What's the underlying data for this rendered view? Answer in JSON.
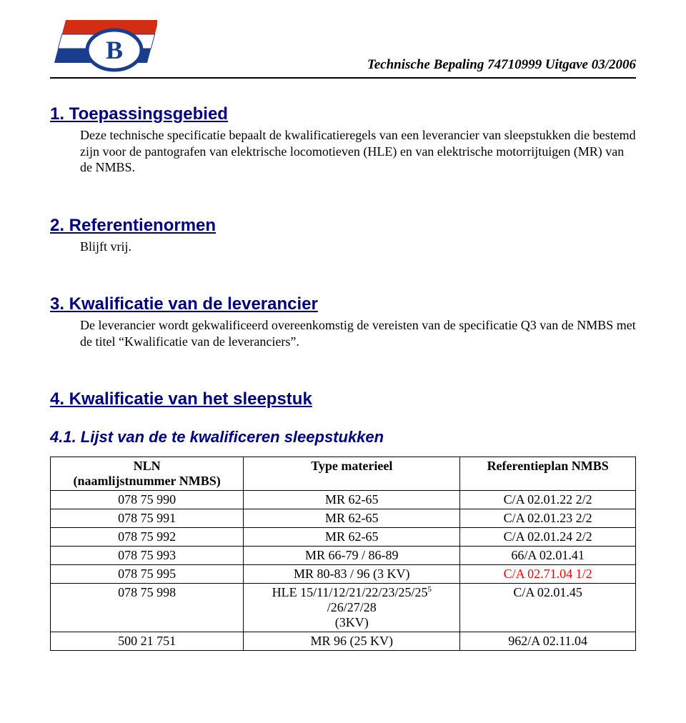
{
  "header": {
    "title": "Technische Bepaling 74710999 Uitgave 03/2006"
  },
  "sections": {
    "s1": {
      "heading": "1. Toepassingsgebied",
      "body": "Deze technische specificatie bepaalt de kwalificatieregels van een leverancier van sleepstukken die bestemd zijn voor de pantografen van elektrische locomotieven (HLE) en van elektrische motorrijtuigen (MR) van de NMBS."
    },
    "s2": {
      "heading": "2. Referentienormen",
      "body": "Blijft vrij."
    },
    "s3": {
      "heading": "3. Kwalificatie van de leverancier",
      "body": "De leverancier wordt gekwalificeerd overeenkomstig de vereisten van de specificatie Q3 van de NMBS met de titel “Kwalificatie van de leveranciers”."
    },
    "s4": {
      "heading": "4. Kwalificatie van het sleepstuk"
    },
    "s41": {
      "heading": "4.1. Lijst van de te kwalificeren sleepstukken"
    }
  },
  "table": {
    "col1_header_l1": "NLN",
    "col1_header_l2": "(naamlijstnummer NMBS)",
    "col2_header": "Type materieel",
    "col3_header": "Referentieplan NMBS",
    "rows": [
      {
        "nln": "078 75 990",
        "type": "MR 62-65",
        "ref": "C/A 02.01.22 2/2",
        "red": false
      },
      {
        "nln": "078 75 991",
        "type": "MR 62-65",
        "ref": "C/A 02.01.23 2/2",
        "red": false
      },
      {
        "nln": "078 75 992",
        "type": "MR 62-65",
        "ref": "C/A 02.01.24 2/2",
        "red": false
      },
      {
        "nln": "078 75 993",
        "type": "MR 66-79 / 86-89",
        "ref": "66/A 02.01.41",
        "red": false
      },
      {
        "nln": "078 75 995",
        "type": "MR 80-83 / 96 (3 KV)",
        "ref": "C/A 02.71.04 1/2",
        "red": true
      },
      {
        "nln": "078 75 998",
        "type_l1": "HLE 15/11/12/21/22/23/25/25 /26/27/28",
        "type_l2": "(3KV)",
        "sup": "5",
        "ref": "C/A 02.01.45",
        "red": false
      },
      {
        "nln": "500 21 751",
        "type": "MR 96 (25 KV)",
        "ref": "962/A 02.11.04",
        "red": false
      }
    ]
  },
  "logo": {
    "stripe1": "#d42e12",
    "stripe2": "#ffffff",
    "stripe3": "#1a3e8f",
    "oval_fill": "#ffffff",
    "oval_stroke": "#1a3e8f",
    "letter": "B"
  }
}
